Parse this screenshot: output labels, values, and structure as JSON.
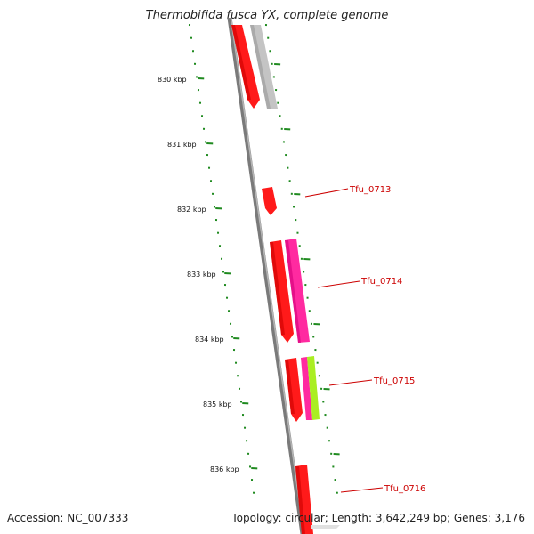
{
  "title": "Thermobifida fusca YX, complete genome",
  "accession": "Accession: NC_007333",
  "stats": "Topology: circular; Length: 3,642,249 bp; Genes: 3,176",
  "ruler": {
    "labels": [
      "830 kbp",
      "831 kbp",
      "832 kbp",
      "833 kbp",
      "834 kbp",
      "835 kbp",
      "836 kbp"
    ]
  },
  "genes": [
    {
      "label": "Tfu_0713"
    },
    {
      "label": "Tfu_0714"
    },
    {
      "label": "Tfu_0715"
    },
    {
      "label": "Tfu_0716"
    }
  ],
  "colors": {
    "tick": "#1f8a1f",
    "backbone": "#777777",
    "cds_red": "#ff1a1a",
    "cds_gray": "#bfbfbf",
    "cds_magenta": "#ff2aa0",
    "cds_lime": "#aaee22",
    "label_red": "#cc0000"
  }
}
